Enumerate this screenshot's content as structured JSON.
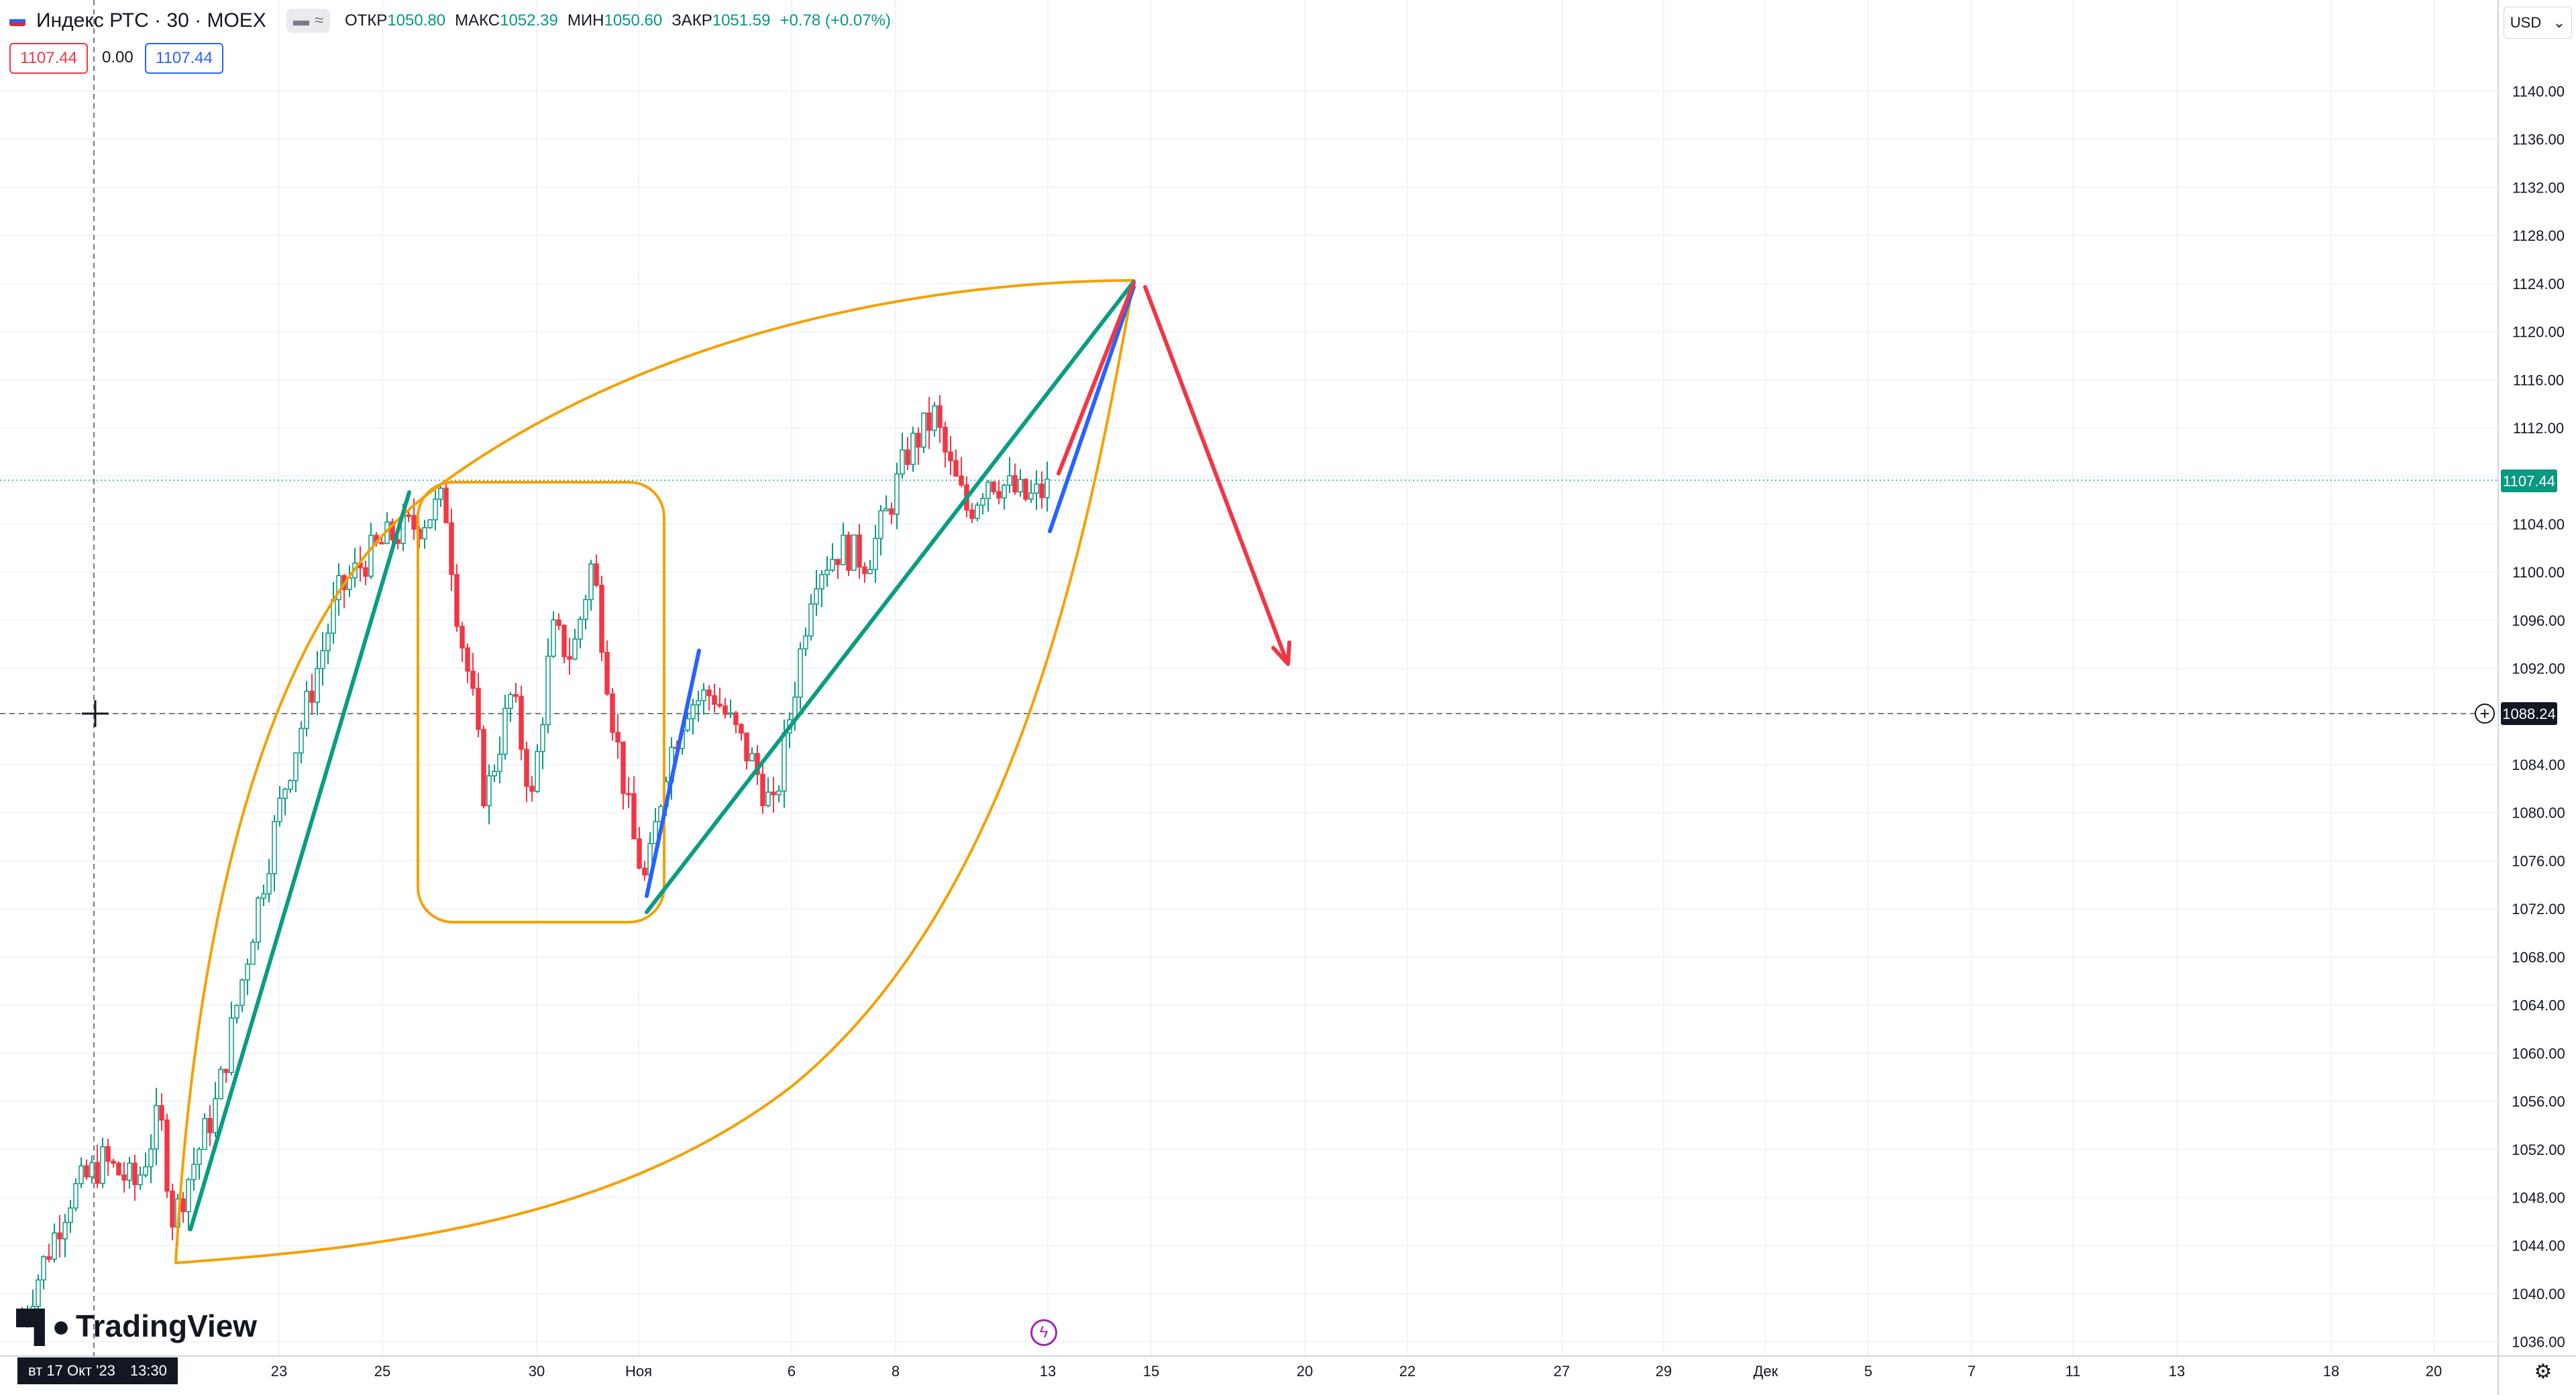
{
  "header": {
    "symbol": "Индекс РТС · 30 · MOEX",
    "open_label": "ОТКР",
    "open": "1050.80",
    "high_label": "МАКС",
    "high": "1052.39",
    "low_label": "МИН",
    "low": "1050.60",
    "close_label": "ЗАКР",
    "close": "1051.59",
    "change": "+0.78 (+0.07%)",
    "pill_a": "▬",
    "pill_b": "≈"
  },
  "price_row": {
    "sell": "1107.44",
    "spread": "0.00",
    "buy": "1107.44"
  },
  "currency": {
    "label": "USD",
    "chevron": "⌄"
  },
  "y_ticks": [
    "1140.00",
    "1136.00",
    "1132.00",
    "1128.00",
    "1124.00",
    "1120.00",
    "1116.00",
    "1112.00",
    "1104.00",
    "1100.00",
    "1096.00",
    "1092.00",
    "1084.00",
    "1080.00",
    "1076.00",
    "1072.00",
    "1068.00",
    "1064.00",
    "1060.00",
    "1056.00",
    "1052.00",
    "1048.00",
    "1044.00",
    "1040.00",
    "1036.00"
  ],
  "last_price_tag": "1107.44",
  "crosshair_price_tag": "1088.24",
  "x_ticks": [
    "23",
    "25",
    "30",
    "Ноя",
    "6",
    "8",
    "13",
    "15",
    "20",
    "22",
    "27",
    "29",
    "Дек",
    "5",
    "7",
    "11",
    "13",
    "18",
    "20"
  ],
  "date_chip": {
    "date": "вт 17 Окт '23",
    "time": "13:30"
  },
  "brand": "TradingView",
  "colors": {
    "up": "#089981",
    "down": "#f23645",
    "accent": "#2962ff",
    "drawing_orange": "#f5a000",
    "trend_teal": "#0a9d82"
  },
  "icons": {
    "settings": "gear-icon",
    "event": "lightning-icon",
    "add_alert": "plus-circle-icon",
    "flag": "flag-icon"
  }
}
